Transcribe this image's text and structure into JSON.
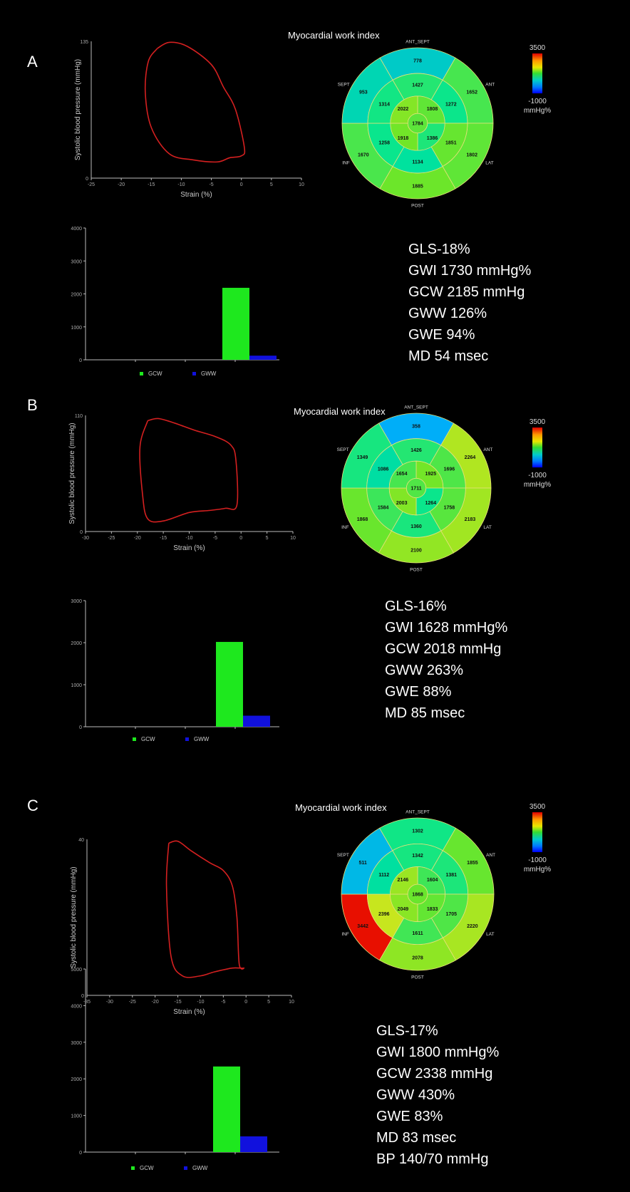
{
  "panels": [
    {
      "letter": "A",
      "title": "Myocardial work index",
      "loop": {
        "ylabel": "Systolic blood pressure (mmHg)",
        "xlabel": "Strain (%)",
        "yticks": [
          "135",
          "0"
        ],
        "xticks": [
          "-25",
          "-20",
          "-15",
          "-10",
          "-5",
          "0",
          "5",
          "10"
        ]
      },
      "bullseye": {
        "walls": [
          "ANT_SEPT",
          "ANT",
          "LAT",
          "POST",
          "INF",
          "SEPT"
        ],
        "basal": [
          "778",
          "1652",
          "1802",
          "1885",
          "1670",
          "953"
        ],
        "mid": [
          "1427",
          "1272",
          "1851",
          "1134",
          "1258",
          "1314"
        ],
        "apical": [
          "1808",
          "1386",
          "1918",
          "2022"
        ],
        "apex": "1784"
      },
      "colorbar": {
        "max": "3500",
        "min": "-1000",
        "unit": "mmHg%"
      },
      "bar": {
        "yticks": [
          "4000",
          "3000",
          "2000",
          "1000",
          "0"
        ],
        "legend": [
          "GCW",
          "GWW"
        ]
      },
      "stats": [
        "GLS-18%",
        "GWI 1730 mmHg%",
        "GCW 2185 mmHg",
        "GWW 126%",
        "GWE 94%",
        "MD 54 msec"
      ]
    },
    {
      "letter": "B",
      "title": "Myocardial work index",
      "loop": {
        "ylabel": "Systolic blood pressure (mmHg)",
        "xlabel": "Strain (%)",
        "yticks": [
          "110",
          "0"
        ],
        "xticks": [
          "-30",
          "-25",
          "-20",
          "-15",
          "-10",
          "-5",
          "0",
          "5",
          "10"
        ]
      },
      "bullseye": {
        "walls": [
          "ANT_SEPT",
          "ANT",
          "LAT",
          "POST",
          "INF",
          "SEPT"
        ],
        "basal": [
          "358",
          "2264",
          "2183",
          "2100",
          "1868",
          "1349"
        ],
        "mid": [
          "1426",
          "1696",
          "1758",
          "1360",
          "1584",
          "1086"
        ],
        "apical": [
          "1925",
          "1264",
          "2003",
          "1654"
        ],
        "apex": "1711"
      },
      "colorbar": {
        "max": "3500",
        "min": "-1000",
        "unit": "mmHg%"
      },
      "bar": {
        "yticks": [
          "3000",
          "2000",
          "1000",
          "0"
        ],
        "legend": [
          "GCW",
          "GWW"
        ]
      },
      "stats": [
        "GLS-16%",
        "GWI 1628 mmHg%",
        "GCW 2018 mmHg",
        "GWW 263%",
        "GWE 88%",
        "MD 85 msec"
      ]
    },
    {
      "letter": "C",
      "title": "Myocardial work index",
      "loop": {
        "ylabel": "Systolic blood pressure (mmHg)",
        "xlabel": "Strain (%)",
        "yticks": [
          "40",
          "0"
        ],
        "xticks": [
          "-35",
          "-30",
          "-25",
          "-20",
          "-15",
          "-10",
          "-5",
          "0",
          "5",
          "10"
        ]
      },
      "bullseye": {
        "walls": [
          "ANT_SEPT",
          "ANT",
          "LAT",
          "POST",
          "INF",
          "SEPT"
        ],
        "basal": [
          "1302",
          "1855",
          "2220",
          "2078",
          "3442",
          "511"
        ],
        "mid": [
          "1342",
          "1381",
          "1705",
          "1611",
          "2396",
          "1112"
        ],
        "apical": [
          "1604",
          "1833",
          "2049",
          "2146"
        ],
        "apex": "1868"
      },
      "colorbar": {
        "max": "3500",
        "min": "-1000",
        "unit": "mmHg%"
      },
      "bar": {
        "yticks": [
          "5000",
          "4000",
          "3000",
          "2000",
          "1000",
          "0"
        ],
        "legend": [
          "GCW",
          "GWW"
        ]
      },
      "stats": [
        "GLS-17%",
        "GWI 1800 mmHg%",
        "GCW 2338 mmHg",
        "GWW 430%",
        "GWE 83%",
        "MD 83 msec",
        "BP 140/70 mmHg"
      ]
    }
  ],
  "chart_data": [
    {
      "type": "line",
      "title": "",
      "xlabel": "Strain (%)",
      "ylabel": "Systolic blood pressure (mmHg)",
      "xlim": [
        -25,
        10
      ],
      "ylim": [
        0,
        135
      ],
      "series": [
        {
          "x": [
            -14,
            -12,
            -9,
            -5,
            -3,
            -1,
            0.5,
            0,
            -2,
            -4,
            -8,
            -12,
            -15,
            -16,
            -15.5,
            -14
          ],
          "y": [
            128,
            134,
            130,
            112,
            90,
            68,
            30,
            22,
            20,
            16,
            18,
            24,
            50,
            85,
            115,
            128
          ]
        }
      ]
    },
    {
      "type": "bar",
      "title": "",
      "categories": [
        "GCW",
        "GWW"
      ],
      "values": [
        2185,
        126
      ],
      "ylim": [
        0,
        4000
      ],
      "colors": [
        "#1ee81e",
        "#1111dd"
      ]
    },
    {
      "type": "line",
      "title": "",
      "xlabel": "Strain (%)",
      "ylabel": "Systolic blood pressure (mmHg)",
      "xlim": [
        -30,
        10
      ],
      "ylim": [
        0,
        110
      ],
      "series": [
        {
          "x": [
            -18,
            -16,
            -13,
            -9,
            -5,
            -2,
            -1,
            -0.8,
            -3,
            -6,
            -10,
            -15,
            -18,
            -19,
            -19.5,
            -18
          ],
          "y": [
            105,
            107,
            103,
            96,
            90,
            82,
            68,
            25,
            22,
            20,
            18,
            10,
            12,
            35,
            80,
            105
          ]
        }
      ]
    },
    {
      "type": "bar",
      "title": "",
      "categories": [
        "GCW",
        "GWW"
      ],
      "values": [
        2018,
        263
      ],
      "ylim": [
        0,
        3000
      ],
      "colors": [
        "#1ee81e",
        "#1111dd"
      ]
    },
    {
      "type": "line",
      "title": "",
      "xlabel": "Strain (%)",
      "ylabel": "Systolic blood pressure (mmHg)",
      "xlim": [
        -35,
        10
      ],
      "ylim": [
        0,
        40
      ],
      "series": [
        {
          "x": [
            -17,
            -15,
            -12,
            -8,
            -5,
            -3,
            -2,
            -1.5,
            -0.5,
            -3,
            -7,
            -10,
            -14,
            -16.5,
            -17.5,
            -17
          ],
          "y": [
            39,
            39.5,
            37,
            34,
            32,
            28,
            20,
            8,
            7,
            7,
            6,
            5,
            5,
            10,
            28,
            39
          ]
        }
      ]
    },
    {
      "type": "bar",
      "title": "",
      "categories": [
        "GCW",
        "GWW"
      ],
      "values": [
        2338,
        430
      ],
      "ylim": [
        0,
        5000
      ],
      "colors": [
        "#1ee81e",
        "#1111dd"
      ]
    }
  ],
  "colors": {
    "loop": "#d42020",
    "gcw": "#1ee81e",
    "gww": "#1111dd",
    "background": "#000000"
  }
}
